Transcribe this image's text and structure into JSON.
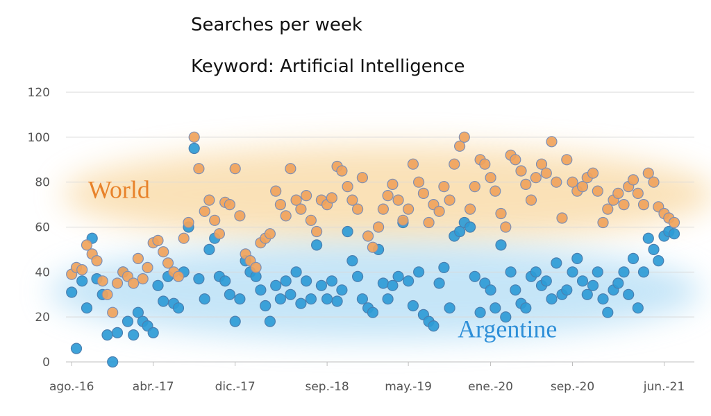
{
  "chart_data": {
    "type": "scatter",
    "title": "Searches per week",
    "subtitle": "Keyword: Artificial Intelligence",
    "xlabel": "",
    "ylabel": "",
    "ylim": [
      0,
      120
    ],
    "y_ticks": [
      0,
      20,
      40,
      60,
      80,
      100,
      120
    ],
    "x_range": [
      "2016-07-15",
      "2021-08-30"
    ],
    "x_ticks": [
      {
        "date": "2016-08-01",
        "label": "ago.-16"
      },
      {
        "date": "2017-04-01",
        "label": "abr.-17"
      },
      {
        "date": "2017-12-01",
        "label": "dic.-17"
      },
      {
        "date": "2018-09-01",
        "label": "sep.-18"
      },
      {
        "date": "2019-05-01",
        "label": "may.-19"
      },
      {
        "date": "2020-01-01",
        "label": "ene.-20"
      },
      {
        "date": "2020-09-01",
        "label": "sep.-20"
      },
      {
        "date": "2021-06-01",
        "label": "jun.-21"
      }
    ],
    "grid": true,
    "legend": "none",
    "series": [
      {
        "name": "World",
        "color": "#f0a35c",
        "x": [
          "2016-08-01",
          "2016-08-15",
          "2016-09-01",
          "2016-09-15",
          "2016-10-01",
          "2016-10-15",
          "2016-11-01",
          "2016-11-15",
          "2016-12-01",
          "2016-12-15",
          "2017-01-01",
          "2017-01-15",
          "2017-02-01",
          "2017-02-15",
          "2017-03-01",
          "2017-03-15",
          "2017-04-01",
          "2017-04-15",
          "2017-05-01",
          "2017-05-15",
          "2017-06-01",
          "2017-06-15",
          "2017-07-01",
          "2017-07-15",
          "2017-08-01",
          "2017-08-15",
          "2017-09-01",
          "2017-09-15",
          "2017-10-01",
          "2017-10-15",
          "2017-11-01",
          "2017-11-15",
          "2017-12-01",
          "2017-12-15",
          "2018-01-01",
          "2018-01-15",
          "2018-02-01",
          "2018-02-15",
          "2018-03-01",
          "2018-03-15",
          "2018-04-01",
          "2018-04-15",
          "2018-05-01",
          "2018-05-15",
          "2018-06-01",
          "2018-06-15",
          "2018-07-01",
          "2018-07-15",
          "2018-08-01",
          "2018-08-15",
          "2018-09-01",
          "2018-09-15",
          "2018-10-01",
          "2018-10-15",
          "2018-11-01",
          "2018-11-15",
          "2018-12-01",
          "2018-12-15",
          "2019-01-01",
          "2019-01-15",
          "2019-02-01",
          "2019-02-15",
          "2019-03-01",
          "2019-03-15",
          "2019-04-01",
          "2019-04-15",
          "2019-05-01",
          "2019-05-15",
          "2019-06-01",
          "2019-06-15",
          "2019-07-01",
          "2019-07-15",
          "2019-08-01",
          "2019-08-15",
          "2019-09-01",
          "2019-09-15",
          "2019-10-01",
          "2019-10-15",
          "2019-11-01",
          "2019-11-15",
          "2019-12-01",
          "2019-12-15",
          "2020-01-01",
          "2020-01-15",
          "2020-02-01",
          "2020-02-15",
          "2020-03-01",
          "2020-03-15",
          "2020-04-01",
          "2020-04-15",
          "2020-05-01",
          "2020-05-15",
          "2020-06-01",
          "2020-06-15",
          "2020-07-01",
          "2020-07-15",
          "2020-08-01",
          "2020-08-15",
          "2020-09-01",
          "2020-09-15",
          "2020-10-01",
          "2020-10-15",
          "2020-11-01",
          "2020-11-15",
          "2020-12-01",
          "2020-12-15",
          "2021-01-01",
          "2021-01-15",
          "2021-02-01",
          "2021-02-15",
          "2021-03-01",
          "2021-03-15",
          "2021-04-01",
          "2021-04-15",
          "2021-05-01",
          "2021-05-15",
          "2021-06-01",
          "2021-06-15",
          "2021-07-01"
        ],
        "y": [
          39,
          42,
          41,
          52,
          48,
          45,
          36,
          30,
          22,
          35,
          40,
          38,
          35,
          46,
          37,
          42,
          53,
          54,
          49,
          44,
          40,
          38,
          55,
          62,
          100,
          86,
          67,
          72,
          63,
          57,
          71,
          70,
          86,
          65,
          48,
          45,
          42,
          53,
          55,
          57,
          76,
          70,
          65,
          86,
          72,
          68,
          74,
          63,
          58,
          72,
          70,
          73,
          87,
          85,
          78,
          72,
          68,
          82,
          56,
          51,
          60,
          68,
          74,
          79,
          72,
          63,
          68,
          88,
          80,
          75,
          62,
          70,
          67,
          78,
          72,
          88,
          96,
          100,
          68,
          78,
          90,
          88,
          82,
          76,
          66,
          60,
          92,
          90,
          85,
          79,
          72,
          82,
          88,
          84,
          98,
          80,
          64,
          90,
          80,
          76,
          78,
          82,
          84,
          76,
          62,
          68,
          72,
          75,
          70,
          78,
          81,
          75,
          70,
          84,
          80,
          69,
          66,
          64,
          62
        ]
      },
      {
        "name": "Argentine",
        "color": "#2e9bd6",
        "x": [
          "2016-08-01",
          "2016-08-15",
          "2016-09-01",
          "2016-09-15",
          "2016-10-01",
          "2016-10-15",
          "2016-11-01",
          "2016-11-15",
          "2016-12-01",
          "2016-12-15",
          "2017-01-01",
          "2017-01-15",
          "2017-02-01",
          "2017-02-15",
          "2017-03-01",
          "2017-03-15",
          "2017-04-01",
          "2017-04-15",
          "2017-05-01",
          "2017-05-15",
          "2017-06-01",
          "2017-06-15",
          "2017-07-01",
          "2017-07-15",
          "2017-08-01",
          "2017-08-15",
          "2017-09-01",
          "2017-09-15",
          "2017-10-01",
          "2017-10-15",
          "2017-11-01",
          "2017-11-15",
          "2017-12-01",
          "2017-12-15",
          "2018-01-01",
          "2018-01-15",
          "2018-02-01",
          "2018-02-15",
          "2018-03-01",
          "2018-03-15",
          "2018-04-01",
          "2018-04-15",
          "2018-05-01",
          "2018-05-15",
          "2018-06-01",
          "2018-06-15",
          "2018-07-01",
          "2018-07-15",
          "2018-08-01",
          "2018-08-15",
          "2018-09-01",
          "2018-09-15",
          "2018-10-01",
          "2018-10-15",
          "2018-11-01",
          "2018-11-15",
          "2018-12-01",
          "2018-12-15",
          "2019-01-01",
          "2019-01-15",
          "2019-02-01",
          "2019-02-15",
          "2019-03-01",
          "2019-03-15",
          "2019-04-01",
          "2019-04-15",
          "2019-05-01",
          "2019-05-15",
          "2019-06-01",
          "2019-06-15",
          "2019-07-01",
          "2019-07-15",
          "2019-08-01",
          "2019-08-15",
          "2019-09-01",
          "2019-09-15",
          "2019-10-01",
          "2019-10-15",
          "2019-11-01",
          "2019-11-15",
          "2019-12-01",
          "2019-12-15",
          "2020-01-01",
          "2020-01-15",
          "2020-02-01",
          "2020-02-15",
          "2020-03-01",
          "2020-03-15",
          "2020-04-01",
          "2020-04-15",
          "2020-05-01",
          "2020-05-15",
          "2020-06-01",
          "2020-06-15",
          "2020-07-01",
          "2020-07-15",
          "2020-08-01",
          "2020-08-15",
          "2020-09-01",
          "2020-09-15",
          "2020-10-01",
          "2020-10-15",
          "2020-11-01",
          "2020-11-15",
          "2020-12-01",
          "2020-12-15",
          "2021-01-01",
          "2021-01-15",
          "2021-02-01",
          "2021-02-15",
          "2021-03-01",
          "2021-03-15",
          "2021-04-01",
          "2021-04-15",
          "2021-05-01",
          "2021-05-15",
          "2021-06-01",
          "2021-06-15",
          "2021-07-01"
        ],
        "y": [
          31,
          6,
          36,
          24,
          55,
          37,
          30,
          12,
          0,
          13,
          40,
          18,
          12,
          22,
          18,
          16,
          13,
          34,
          27,
          38,
          26,
          24,
          40,
          60,
          95,
          37,
          28,
          50,
          55,
          38,
          36,
          30,
          18,
          28,
          45,
          40,
          38,
          32,
          25,
          18,
          34,
          28,
          36,
          30,
          40,
          26,
          36,
          28,
          52,
          34,
          28,
          36,
          27,
          32,
          58,
          45,
          38,
          28,
          24,
          22,
          50,
          35,
          28,
          34,
          38,
          62,
          36,
          25,
          40,
          21,
          18,
          16,
          35,
          42,
          24,
          56,
          58,
          62,
          60,
          38,
          22,
          35,
          32,
          24,
          52,
          20,
          40,
          32,
          26,
          24,
          38,
          40,
          34,
          36,
          28,
          44,
          30,
          32,
          40,
          46,
          36,
          30,
          34,
          40,
          28,
          22,
          32,
          35,
          40,
          30,
          46,
          24,
          40,
          55,
          50,
          45,
          56,
          58,
          57
        ]
      }
    ],
    "annotations": [
      {
        "text": "World",
        "color": "#e8822a",
        "date": "2016-12-20",
        "y": 73
      },
      {
        "text": "Argentine",
        "color": "#2e8fd8",
        "date": "2020-02-20",
        "y": 11
      }
    ]
  }
}
